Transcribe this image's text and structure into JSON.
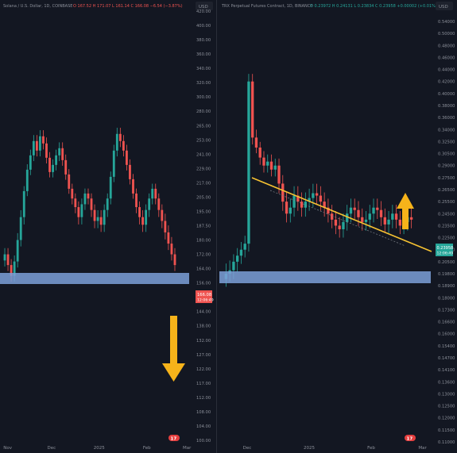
{
  "panels": [
    {
      "header": {
        "title": "Solana / U.S. Dollar, 1D, COINBASE",
        "ohlc": "O 167.52  H 171.07  L 161.14  C 166.08  −6.54 (−3.87%)"
      },
      "currency": "USD",
      "price_tag": {
        "value": "166.08",
        "countdown": "12:06:49"
      },
      "x_labels": [
        "Nov",
        "Dec",
        "2025",
        "Feb",
        "Mar"
      ],
      "x_label_pos": [
        0.04,
        0.27,
        0.52,
        0.77,
        0.98
      ]
    },
    {
      "header": {
        "title": "TRX Perpetual Futures Contract, 1D, BINANCE",
        "ohlc": "O 0.23972  H 0.24131  L 0.23834  C 0.23958  +0.00002 (+0.01%)"
      },
      "currency": "USD",
      "price_tag": {
        "value": "0.23958",
        "countdown": "12:06:49"
      },
      "x_labels": [
        "Dec",
        "2025",
        "Feb",
        "Mar"
      ],
      "x_label_pos": [
        0.13,
        0.42,
        0.71,
        0.95
      ]
    }
  ],
  "chart_data": [
    {
      "type": "candlestick",
      "title": "Solana / U.S. Dollar, 1D, COINBASE",
      "y_ticks": [
        "420.00",
        "400.00",
        "380.00",
        "360.00",
        "340.00",
        "320.00",
        "300.00",
        "280.00",
        "265.00",
        "253.00",
        "241.00",
        "229.00",
        "217.00",
        "205.00",
        "195.00",
        "187.50",
        "180.00",
        "172.00",
        "164.00",
        "156.00",
        "150.00",
        "144.00",
        "138.00",
        "132.00",
        "127.00",
        "122.00",
        "117.00",
        "112.00",
        "108.00",
        "104.00",
        "100.00"
      ],
      "ylim": [
        100,
        420
      ],
      "support_zone": [
        176,
        184
      ],
      "arrow_direction": "down",
      "closes": [
        172,
        166,
        160,
        168,
        180,
        192,
        210,
        228,
        240,
        252,
        244,
        256,
        250,
        238,
        226,
        232,
        240,
        246,
        236,
        224,
        212,
        204,
        198,
        192,
        200,
        208,
        204,
        196,
        190,
        192,
        188,
        196,
        204,
        222,
        244,
        258,
        252,
        244,
        232,
        220,
        208,
        198,
        192,
        188,
        196,
        204,
        212,
        204,
        196,
        190,
        184,
        178,
        172,
        166
      ],
      "last": 166.08
    },
    {
      "type": "candlestick",
      "title": "TRX Perpetual Futures Contract, 1D, BINANCE",
      "y_ticks": [
        "0.54000",
        "0.50000",
        "0.48000",
        "0.46000",
        "0.44000",
        "0.42000",
        "0.40000",
        "0.38000",
        "0.36000",
        "0.34000",
        "0.32500",
        "0.30500",
        "0.29000",
        "0.27500",
        "0.26500",
        "0.25500",
        "0.24500",
        "0.23500",
        "0.22500",
        "0.21500",
        "0.20500",
        "0.19800",
        "0.18900",
        "0.18000",
        "0.17300",
        "0.16600",
        "0.16000",
        "0.15400",
        "0.14700",
        "0.14100",
        "0.13600",
        "0.13000",
        "0.12500",
        "0.12000",
        "0.11500",
        "0.11000"
      ],
      "support_zone": [
        0.2135,
        0.2215
      ],
      "trendline": [
        [
          0.13,
          0.312
        ],
        [
          1.0,
          0.2375
        ]
      ],
      "arrow_direction": "up",
      "closes": [
        0.198,
        0.2,
        0.205,
        0.21,
        0.215,
        0.22,
        0.42,
        0.33,
        0.315,
        0.3,
        0.29,
        0.295,
        0.285,
        0.29,
        0.27,
        0.255,
        0.245,
        0.25,
        0.26,
        0.255,
        0.25,
        0.255,
        0.258,
        0.262,
        0.26,
        0.255,
        0.25,
        0.245,
        0.24,
        0.235,
        0.232,
        0.238,
        0.245,
        0.25,
        0.248,
        0.242,
        0.238,
        0.24,
        0.245,
        0.25,
        0.248,
        0.242,
        0.236,
        0.24,
        0.245,
        0.24,
        0.235,
        0.238,
        0.242,
        0.24
      ],
      "last": 0.23958
    }
  ],
  "colors": {
    "background": "#131722",
    "up": "#26a69a",
    "down": "#ef5350",
    "zone": "#7da0d8",
    "arrow": "#f6b31a",
    "trendline": "#f6c232",
    "text": "#8b8f99"
  },
  "icons": [
    "tradingview-logo-icon",
    "tradingview-logo-icon"
  ]
}
